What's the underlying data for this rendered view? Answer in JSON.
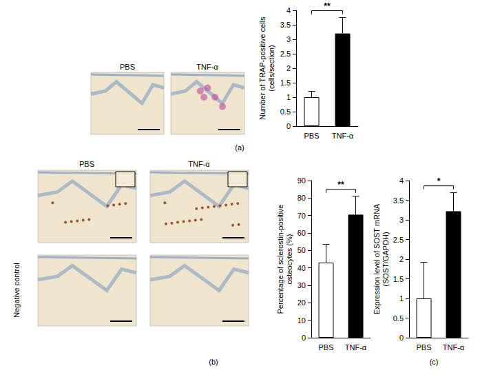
{
  "chart_data": [
    {
      "type": "bar",
      "ylabel": "Number of TRAP-positive cells\n(cells/section)",
      "categories": [
        "PBS",
        "TNF-α"
      ],
      "values": [
        1,
        3.2
      ],
      "errors": [
        0.2,
        0.55
      ],
      "colors": [
        "#ffffff",
        "#000000"
      ],
      "ylim": [
        0,
        4
      ],
      "yticks": [
        0,
        0.5,
        1,
        1.5,
        2,
        2.5,
        3,
        3.5,
        4
      ],
      "annotation": "**"
    },
    {
      "type": "bar",
      "ylabel": "Percentage of sclerostin-positive\nosteocytes (%)",
      "categories": [
        "PBS",
        "TNF-α"
      ],
      "values": [
        43,
        70.5
      ],
      "errors": [
        10.5,
        10.5
      ],
      "colors": [
        "#ffffff",
        "#000000"
      ],
      "ylim": [
        0,
        90
      ],
      "yticks": [
        0,
        10,
        20,
        30,
        40,
        50,
        60,
        70,
        80,
        90
      ],
      "annotation": "**"
    },
    {
      "type": "bar",
      "ylabel": "Expression level of SOST mRNA\n(SOST/GAPDH)",
      "categories": [
        "PBS",
        "TNF-α"
      ],
      "values": [
        1,
        3.22
      ],
      "errors": [
        0.92,
        0.47
      ],
      "colors": [
        "#ffffff",
        "#000000"
      ],
      "ylim": [
        0,
        4
      ],
      "yticks": [
        0,
        0.5,
        1,
        1.5,
        2,
        2.5,
        3,
        3.5,
        4
      ],
      "annotation": "*"
    }
  ],
  "panel_labels": [
    "(a)",
    "(b)",
    "(c)"
  ],
  "micrographs": {
    "a": {
      "columns": [
        "PBS",
        "TNF-α"
      ]
    },
    "b": {
      "columns": [
        "PBS",
        "TNF-α"
      ],
      "row_label": "Negative control"
    }
  }
}
